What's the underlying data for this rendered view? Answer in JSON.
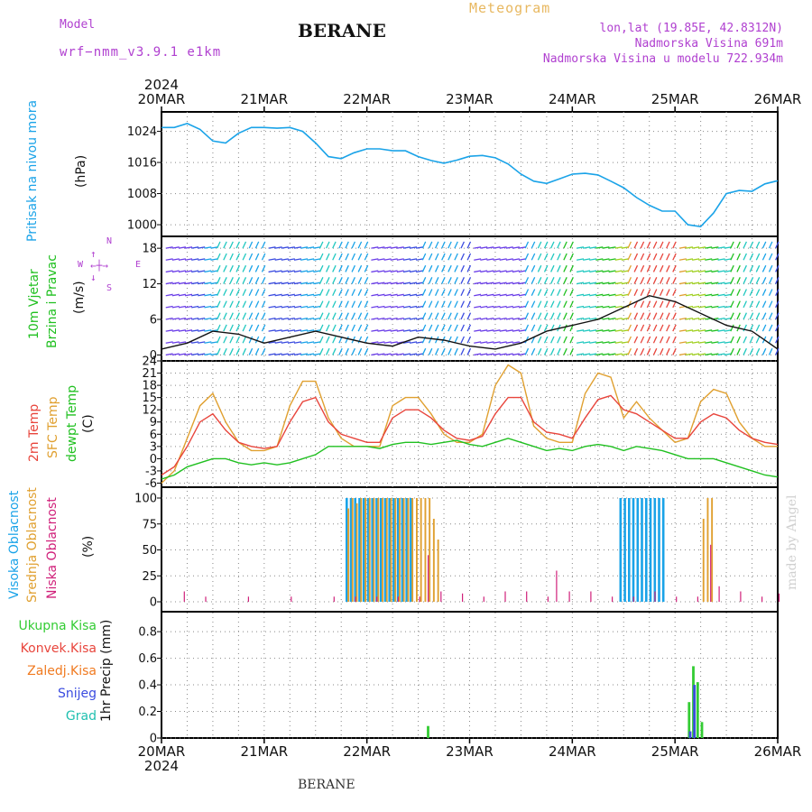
{
  "header": {
    "model_label": "Model",
    "model_name": "wrf−nmm_v3.9.1 e1km",
    "station": "BERANE",
    "product": "Meteogram",
    "coords": "lon,lat (19.85E, 42.8312N)",
    "elevation": "Nadmorska Visina 691m",
    "model_elevation": "Nadmorska Visina u modelu 722.934m"
  },
  "footer": {
    "station": "BERANE",
    "watermark": "made by Angel"
  },
  "time_axis": {
    "year_top": "2024",
    "year_bottom": "2024",
    "labels": [
      "20MAR",
      "21MAR",
      "22MAR",
      "23MAR",
      "24MAR",
      "25MAR",
      "26MAR"
    ]
  },
  "panels": {
    "pressure": {
      "label": "Pritisak na nivou mora",
      "unit": "(hPa)",
      "ticks": [
        "1000",
        "1008",
        "1016",
        "1024"
      ],
      "color": "#1aa3e8"
    },
    "wind": {
      "label_1": "10m Vjetar",
      "label_2": "Brzina i Pravac",
      "unit": "(m/s)",
      "ticks": [
        "0",
        "6",
        "12",
        "18"
      ],
      "compass_n": "N",
      "compass_w": "W",
      "compass_e": "E",
      "compass_s": "S"
    },
    "temperature": {
      "label_2m": "2m Temp",
      "label_sfc": "SFC Temp",
      "label_dewpt": "dewpt Temp",
      "unit": "(C)",
      "ticks": [
        "-6",
        "-3",
        "0",
        "3",
        "6",
        "9",
        "12",
        "15",
        "18",
        "21",
        "24"
      ]
    },
    "cloud": {
      "label_high": "Visoka Oblacnost",
      "label_mid": "Srednja Oblacnost",
      "label_low": "Niska Oblacnost",
      "unit": "(%)",
      "ticks": [
        "0",
        "25",
        "50",
        "75",
        "100"
      ]
    },
    "precip": {
      "unit_label": "1hr Precip (mm)",
      "ticks": [
        "0",
        "0.2",
        "0.4",
        "0.6",
        "0.8"
      ],
      "legend": [
        "Ukupna Kisa",
        "Konvek.Kisa",
        "Zaledj.Kisa",
        "Snijeg",
        "Grad"
      ]
    }
  },
  "colors": {
    "pressure": "#1aa3e8",
    "t2m": "#e8453c",
    "tsfc": "#e0a030",
    "dewpt": "#20c020",
    "cloud_high": "#1aa3e8",
    "cloud_mid": "#e0a030",
    "cloud_low": "#d0207a",
    "rain_total": "#33cc33",
    "rain_conv": "#e8453c",
    "rain_freeze": "#f07a20",
    "snow": "#3b4ce0",
    "hail": "#20c0b0",
    "wind_label": "#20c020",
    "compass": "#b040d0",
    "header_purple": "#b040d0",
    "meteogram": "#e8b860"
  },
  "chart_data": [
    {
      "type": "line",
      "title": "Pritisak na nivou mora",
      "ylabel": "(hPa)",
      "ylim": [
        997,
        1029
      ],
      "x_unit": "hours since 20MAR 00UTC",
      "series": [
        {
          "name": "Pritisak na nivou mora",
          "x": [
            0,
            3,
            6,
            9,
            12,
            15,
            18,
            21,
            24,
            27,
            30,
            33,
            36,
            39,
            42,
            45,
            48,
            51,
            54,
            57,
            60,
            63,
            66,
            69,
            72,
            75,
            78,
            81,
            84,
            87,
            90,
            93,
            96,
            99,
            102,
            105,
            108,
            111,
            114,
            117,
            120,
            123,
            126,
            129,
            132,
            135,
            138,
            141,
            144
          ],
          "values": [
            1025,
            1025,
            1026,
            1024.5,
            1021.5,
            1021,
            1023.5,
            1025,
            1025,
            1024.8,
            1025,
            1024,
            1021,
            1017.5,
            1017,
            1018.5,
            1019.5,
            1019.5,
            1019,
            1019,
            1017.5,
            1016.5,
            1015.8,
            1016.6,
            1017.6,
            1017.8,
            1017.2,
            1015.6,
            1013,
            1011.2,
            1010.6,
            1011.8,
            1013,
            1013.2,
            1012.8,
            1011.2,
            1009.5,
            1007,
            1005,
            1003.5,
            1003.5,
            1000,
            999.5,
            1003,
            1008,
            1008.8,
            1008.6,
            1010.5,
            1011.3
          ]
        }
      ]
    },
    {
      "type": "line",
      "title": "10m Vjetar Brzina i Pravac",
      "ylabel": "(m/s)",
      "ylim": [
        -1,
        20
      ],
      "x_unit": "hours since 20MAR 00UTC",
      "series": [
        {
          "name": "10m Vjetar",
          "x": [
            0,
            6,
            12,
            18,
            24,
            30,
            36,
            42,
            48,
            54,
            60,
            66,
            72,
            78,
            84,
            90,
            96,
            102,
            108,
            114,
            120,
            126,
            132,
            138,
            144
          ],
          "values": [
            1,
            2,
            4,
            3.5,
            2,
            3,
            4,
            3,
            2,
            1.5,
            3,
            2.5,
            1.5,
            1,
            2,
            4,
            5,
            6,
            8,
            10,
            9,
            7,
            5,
            4,
            1
          ]
        }
      ]
    },
    {
      "type": "line",
      "title": "2m Temp / SFC Temp / dewpt Temp",
      "ylabel": "(C)",
      "ylim": [
        -7,
        24
      ],
      "x_unit": "hours since 20MAR 00UTC",
      "series": [
        {
          "name": "2m Temp",
          "x": [
            0,
            3,
            6,
            9,
            12,
            15,
            18,
            21,
            24,
            27,
            30,
            33,
            36,
            39,
            42,
            45,
            48,
            51,
            54,
            57,
            60,
            63,
            66,
            69,
            72,
            75,
            78,
            81,
            84,
            87,
            90,
            93,
            96,
            99,
            102,
            105,
            108,
            111,
            114,
            117,
            120,
            123,
            126,
            129,
            132,
            135,
            138,
            141,
            144
          ],
          "values": [
            -4,
            -2,
            3,
            9,
            11,
            7,
            4,
            3,
            2.5,
            3,
            9,
            14,
            15,
            9,
            6,
            5,
            4,
            4,
            10,
            12,
            12,
            10,
            7,
            5,
            4.5,
            5.5,
            11,
            15,
            15,
            9,
            6.5,
            6,
            5,
            10,
            14.5,
            15.5,
            12,
            11,
            9,
            7,
            5,
            5,
            9,
            11,
            10,
            7,
            5,
            4,
            3.5
          ]
        },
        {
          "name": "SFC Temp",
          "x": [
            0,
            3,
            6,
            9,
            12,
            15,
            18,
            21,
            24,
            27,
            30,
            33,
            36,
            39,
            42,
            45,
            48,
            51,
            54,
            57,
            60,
            63,
            66,
            69,
            72,
            75,
            78,
            81,
            84,
            87,
            90,
            93,
            96,
            99,
            102,
            105,
            108,
            111,
            114,
            117,
            120,
            123,
            126,
            129,
            132,
            135,
            138,
            141,
            144
          ],
          "values": [
            -6,
            -3,
            5,
            13,
            16,
            9,
            4,
            2,
            2,
            3,
            13,
            19,
            19,
            10,
            5,
            3,
            3,
            3,
            13,
            15,
            15,
            11,
            6,
            4,
            4,
            6,
            18,
            23,
            21,
            8,
            5,
            4,
            4,
            16,
            21,
            20,
            10,
            14,
            10,
            7,
            4,
            5,
            14,
            17,
            16,
            9,
            5,
            3,
            3
          ]
        },
        {
          "name": "dewpt Temp",
          "x": [
            0,
            3,
            6,
            9,
            12,
            15,
            18,
            21,
            24,
            27,
            30,
            33,
            36,
            39,
            42,
            45,
            48,
            51,
            54,
            57,
            60,
            63,
            66,
            69,
            72,
            75,
            78,
            81,
            84,
            87,
            90,
            93,
            96,
            99,
            102,
            105,
            108,
            111,
            114,
            117,
            120,
            123,
            126,
            129,
            132,
            135,
            138,
            141,
            144
          ],
          "values": [
            -5,
            -4,
            -2,
            -1,
            0,
            0,
            -1,
            -1.5,
            -1,
            -1.5,
            -1,
            0,
            1,
            3,
            3,
            3,
            3,
            2.5,
            3.5,
            4,
            4,
            3.5,
            4,
            4.5,
            3.5,
            3,
            4,
            5,
            4,
            3,
            2,
            2.5,
            2,
            3,
            3.5,
            3,
            2,
            3,
            2.5,
            2,
            1,
            0,
            0,
            0,
            -1,
            -2,
            -3,
            -4,
            -4.5
          ]
        }
      ]
    },
    {
      "type": "bar",
      "title": "Visoka / Srednja / Niska Oblacnost",
      "ylabel": "(%)",
      "ylim": [
        0,
        100
      ],
      "x_unit": "hours since 20MAR 00UTC",
      "series": [
        {
          "name": "Visoka Oblacnost",
          "x": [
            43,
            44,
            45,
            46,
            47,
            48,
            49,
            50,
            51,
            52,
            53,
            54,
            55,
            56,
            57,
            58,
            59,
            60,
            61,
            62,
            63,
            64,
            65,
            66,
            67,
            68,
            69,
            70,
            71,
            72,
            73,
            74,
            75,
            76,
            77,
            78,
            79,
            80,
            81,
            82,
            83,
            84,
            85,
            86,
            87,
            88,
            89,
            90,
            91,
            92,
            93,
            94,
            95,
            96,
            97,
            98,
            99,
            100,
            101,
            102,
            103,
            104,
            105,
            106,
            107,
            108,
            109,
            110,
            111,
            112,
            113,
            114,
            115,
            116,
            117,
            118,
            119,
            120
          ],
          "values": [
            100,
            100,
            100,
            100,
            100,
            100,
            100,
            100,
            100,
            100,
            100,
            100,
            100,
            100,
            100,
            100,
            0,
            0,
            0,
            0,
            0,
            0,
            0,
            0,
            0,
            0,
            0,
            0,
            0,
            0,
            0,
            0,
            0,
            0,
            0,
            0,
            0,
            0,
            0,
            0,
            0,
            0,
            0,
            0,
            0,
            0,
            0,
            0,
            0,
            0,
            0,
            0,
            0,
            0,
            0,
            0,
            0,
            0,
            0,
            0,
            0,
            0,
            0,
            0,
            100,
            100,
            100,
            100,
            100,
            100,
            100,
            100,
            100,
            100,
            100,
            0,
            0,
            0
          ]
        },
        {
          "name": "Srednja Oblacnost",
          "x": [
            43,
            44,
            45,
            46,
            47,
            48,
            49,
            50,
            51,
            52,
            53,
            54,
            55,
            56,
            57,
            58,
            59,
            60,
            61,
            62,
            63,
            64,
            65,
            66,
            67,
            68,
            69,
            70,
            71,
            72,
            73,
            74,
            75,
            76,
            77,
            78,
            79,
            80,
            81,
            82,
            83,
            84,
            85,
            86,
            87,
            88,
            89,
            90,
            91,
            92,
            93,
            94,
            95,
            96,
            97,
            98,
            99,
            100,
            101,
            102,
            103,
            104,
            105,
            106,
            107,
            108,
            109,
            110,
            111,
            112,
            113,
            114,
            115,
            116,
            117,
            118,
            119,
            120,
            121,
            122,
            123,
            124,
            125,
            126,
            127,
            128
          ],
          "values": [
            90,
            100,
            95,
            100,
            100,
            100,
            100,
            100,
            100,
            100,
            100,
            100,
            100,
            100,
            100,
            100,
            100,
            100,
            100,
            100,
            80,
            60,
            0,
            0,
            0,
            0,
            0,
            0,
            0,
            0,
            0,
            0,
            0,
            0,
            0,
            0,
            0,
            0,
            0,
            0,
            0,
            0,
            0,
            0,
            0,
            0,
            0,
            0,
            0,
            0,
            0,
            0,
            0,
            0,
            0,
            0,
            0,
            0,
            0,
            0,
            0,
            0,
            0,
            0,
            0,
            0,
            0,
            0,
            0,
            0,
            0,
            0,
            0,
            0,
            0,
            0,
            0,
            0,
            0,
            0,
            0,
            0,
            0,
            80,
            100,
            100
          ]
        },
        {
          "name": "Niska Oblacnost",
          "x": [
            5,
            10,
            20,
            30,
            40,
            45,
            50,
            55,
            60,
            62,
            65,
            70,
            75,
            80,
            85,
            90,
            92,
            95,
            100,
            105,
            110,
            115,
            120,
            125,
            128,
            130,
            135,
            140,
            144
          ],
          "values": [
            10,
            5,
            5,
            5,
            5,
            5,
            5,
            5,
            5,
            45,
            10,
            8,
            5,
            10,
            10,
            5,
            30,
            10,
            10,
            5,
            5,
            10,
            5,
            5,
            55,
            15,
            10,
            5,
            8
          ]
        }
      ]
    },
    {
      "type": "bar",
      "title": "1hr Precip",
      "ylabel": "1hr Precip (mm)",
      "ylim": [
        0,
        0.95
      ],
      "x_unit": "hours since 20MAR 00UTC",
      "series": [
        {
          "name": "Ukupna Kisa",
          "x": [
            62,
            123,
            124,
            125,
            126
          ],
          "values": [
            0.09,
            0.27,
            0.54,
            0.42,
            0.12
          ]
        },
        {
          "name": "Snijeg",
          "x": [
            123,
            124
          ],
          "values": [
            0.05,
            0.4
          ]
        }
      ]
    }
  ]
}
